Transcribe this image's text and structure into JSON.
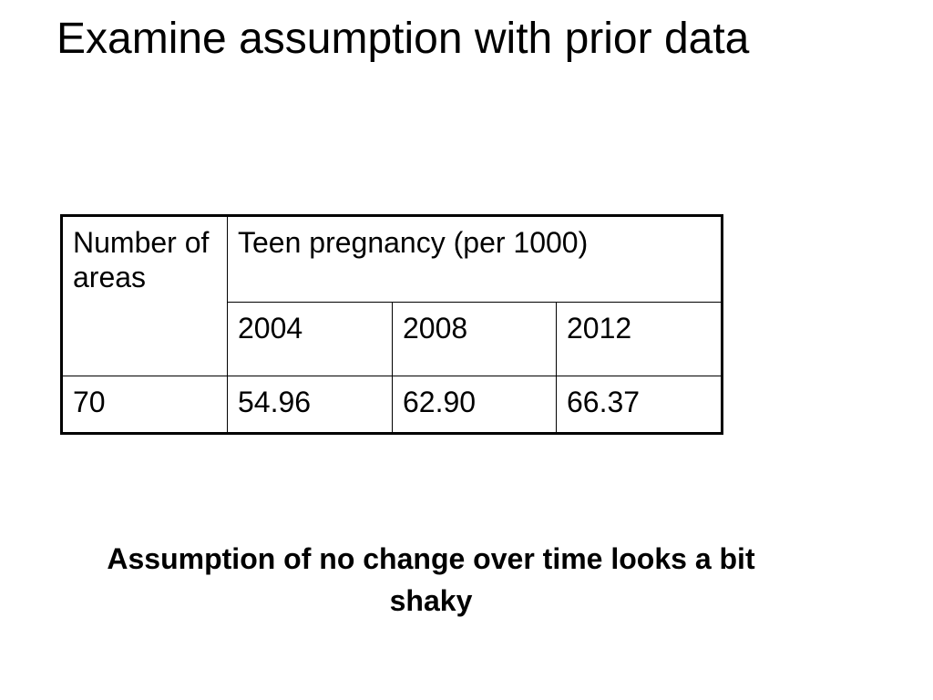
{
  "slide": {
    "title": "Examine assumption with prior data",
    "table": {
      "header_col1": "Number of areas",
      "header_group": "Teen pregnancy (per 1000)",
      "years": [
        "2004",
        "2008",
        "2012"
      ],
      "row": {
        "areas": "70",
        "values": [
          "54.96",
          "62.90",
          "66.37"
        ]
      }
    },
    "conclusion": "Assumption of no change over time looks a bit shaky"
  }
}
